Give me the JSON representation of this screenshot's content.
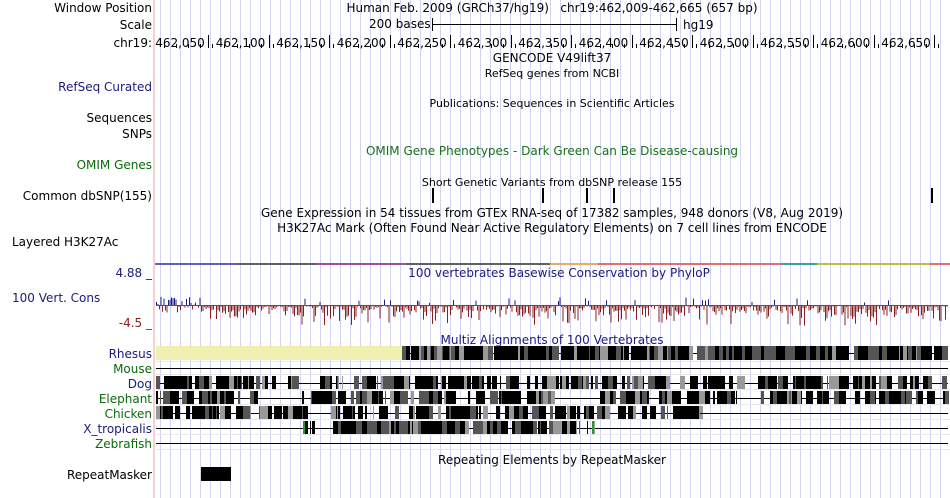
{
  "header": {
    "window_position_label": "Window Position",
    "window_position_value": "Human Feb. 2009 (GRCh37/hg19)   chr19:462,009-462,665 (657 bp)",
    "scale_label": "Scale",
    "scale_value": "200 bases",
    "assembly": "hg19",
    "chrom_label": "chr19:",
    "ruler_ticks": [
      "462,050",
      "462,100",
      "462,150",
      "462,200",
      "462,250",
      "462,300",
      "462,350",
      "462,400",
      "462,450",
      "462,500",
      "462,550",
      "462,600",
      "462,650"
    ]
  },
  "tracks": {
    "gencode": {
      "title": "GENCODE V49lift37"
    },
    "refseq": {
      "label": "RefSeq Curated",
      "title": "RefSeq genes from NCBI"
    },
    "publications": {
      "title": "Publications: Sequences in Scientific Articles"
    },
    "sequences": {
      "label": "Sequences"
    },
    "snps": {
      "label": "SNPs"
    },
    "omim": {
      "label": "OMIM Genes",
      "title": "OMIM Gene Phenotypes - Dark Green Can Be Disease-causing"
    },
    "dbsnp": {
      "label": "Common dbSNP(155)",
      "title": "Short Genetic Variants from dbSNP release 155"
    },
    "gtex": {
      "title": "Gene Expression in 54 tissues from GTEx RNA-seq of 17382 samples, 948 donors (V8, Aug 2019)"
    },
    "h3k27ac": {
      "label": "Layered H3K27Ac",
      "title": "H3K27Ac Mark (Often Found Near Active Regulatory Elements) on 7 cell lines from ENCODE"
    },
    "conservation": {
      "label": "100 Vert. Cons",
      "ymax": "4.88 _",
      "ymin": "-4.5 _",
      "title": "100 vertebrates Basewise Conservation by PhyloP"
    },
    "multiz": {
      "title": "Multiz Alignments of 100 Vertebrates",
      "species": [
        "Rhesus",
        "Mouse",
        "Dog",
        "Elephant",
        "Chicken",
        "X_tropicalis",
        "Zebrafish"
      ]
    },
    "repeatmasker": {
      "label": "RepeatMasker",
      "title": "Repeating Elements by RepeatMasker"
    }
  },
  "colors": {
    "label_blue": "#1b1b7a",
    "label_green": "#0a6a0a",
    "omim_green": "#1a6e1a",
    "cons_positive": "#1b1b8a",
    "cons_negative": "#8a2020",
    "rhesus_gap": "#f0f0b0"
  }
}
